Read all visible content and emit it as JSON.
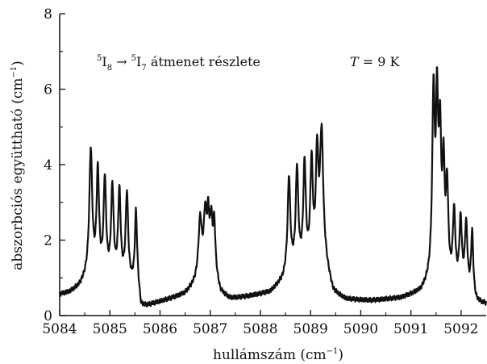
{
  "chart_data": {
    "type": "line",
    "xlabel": "hullámszám (cm−1)",
    "xlabel_main": "hullámszám (cm",
    "xlabel_exp": "−1",
    "xlabel_close": ")",
    "ylabel": "abszorbciós együttható (cm−1)",
    "ylabel_main": "abszorbciós együttható (cm",
    "ylabel_exp": "−1",
    "ylabel_close": ")",
    "xlim": [
      5084,
      5092.5
    ],
    "ylim": [
      0,
      8
    ],
    "x_ticks": [
      5084,
      5085,
      5086,
      5087,
      5088,
      5089,
      5090,
      5091,
      5092
    ],
    "y_ticks": [
      0,
      2,
      4,
      6,
      8
    ],
    "annotations": {
      "transition": {
        "sup1": "5",
        "main1": "I",
        "sub1": "8",
        "arrow": " → ",
        "sup2": "5",
        "main2": "I",
        "sub2": "7",
        "rest": " átmenet részlete"
      },
      "temperature": {
        "symbol": "T",
        "rest": " = 9 K"
      }
    },
    "grid": false,
    "legend": "none",
    "baseline": [
      [
        5084.0,
        0.55
      ],
      [
        5084.2,
        0.6
      ],
      [
        5084.4,
        0.75
      ],
      [
        5084.55,
        1.0
      ],
      [
        5085.55,
        0.8
      ],
      [
        5085.62,
        0.15
      ],
      [
        5085.9,
        0.3
      ],
      [
        5086.5,
        0.55
      ],
      [
        5086.75,
        0.85
      ],
      [
        5087.1,
        1.0
      ],
      [
        5087.2,
        0.55
      ],
      [
        5087.4,
        0.42
      ],
      [
        5087.8,
        0.5
      ],
      [
        5088.2,
        0.6
      ],
      [
        5088.45,
        0.9
      ],
      [
        5088.55,
        1.2
      ],
      [
        5089.3,
        1.2
      ],
      [
        5089.45,
        0.55
      ],
      [
        5089.7,
        0.4
      ],
      [
        5090.2,
        0.38
      ],
      [
        5090.8,
        0.45
      ],
      [
        5091.2,
        0.6
      ],
      [
        5091.4,
        0.9
      ],
      [
        5092.2,
        0.5
      ],
      [
        5092.3,
        0.3
      ],
      [
        5092.5,
        0.28
      ]
    ],
    "peaks": [
      {
        "x": 5084.62,
        "y": 4.3,
        "w": 0.035
      },
      {
        "x": 5084.76,
        "y": 3.7,
        "w": 0.03
      },
      {
        "x": 5084.9,
        "y": 3.5,
        "w": 0.03
      },
      {
        "x": 5085.05,
        "y": 3.3,
        "w": 0.03
      },
      {
        "x": 5085.19,
        "y": 3.2,
        "w": 0.03
      },
      {
        "x": 5085.34,
        "y": 3.15,
        "w": 0.03
      },
      {
        "x": 5085.52,
        "y": 2.7,
        "w": 0.025
      },
      {
        "x": 5086.8,
        "y": 2.45,
        "w": 0.04
      },
      {
        "x": 5086.9,
        "y": 2.5,
        "w": 0.035
      },
      {
        "x": 5086.96,
        "y": 2.3,
        "w": 0.025
      },
      {
        "x": 5087.02,
        "y": 2.35,
        "w": 0.03
      },
      {
        "x": 5087.08,
        "y": 2.3,
        "w": 0.025
      },
      {
        "x": 5088.57,
        "y": 3.6,
        "w": 0.03
      },
      {
        "x": 5088.73,
        "y": 3.8,
        "w": 0.03
      },
      {
        "x": 5088.88,
        "y": 3.9,
        "w": 0.03
      },
      {
        "x": 5089.02,
        "y": 3.9,
        "w": 0.03
      },
      {
        "x": 5089.13,
        "y": 4.0,
        "w": 0.03
      },
      {
        "x": 5089.22,
        "y": 4.7,
        "w": 0.04
      },
      {
        "x": 5091.45,
        "y": 5.7,
        "w": 0.03
      },
      {
        "x": 5091.52,
        "y": 5.0,
        "w": 0.025
      },
      {
        "x": 5091.58,
        "y": 4.4,
        "w": 0.03
      },
      {
        "x": 5091.65,
        "y": 3.5,
        "w": 0.025
      },
      {
        "x": 5091.72,
        "y": 3.2,
        "w": 0.03
      },
      {
        "x": 5091.86,
        "y": 2.6,
        "w": 0.03
      },
      {
        "x": 5091.99,
        "y": 2.4,
        "w": 0.03
      },
      {
        "x": 5092.1,
        "y": 2.3,
        "w": 0.03
      },
      {
        "x": 5092.22,
        "y": 2.1,
        "w": 0.025
      }
    ],
    "line_color": "#111111"
  }
}
